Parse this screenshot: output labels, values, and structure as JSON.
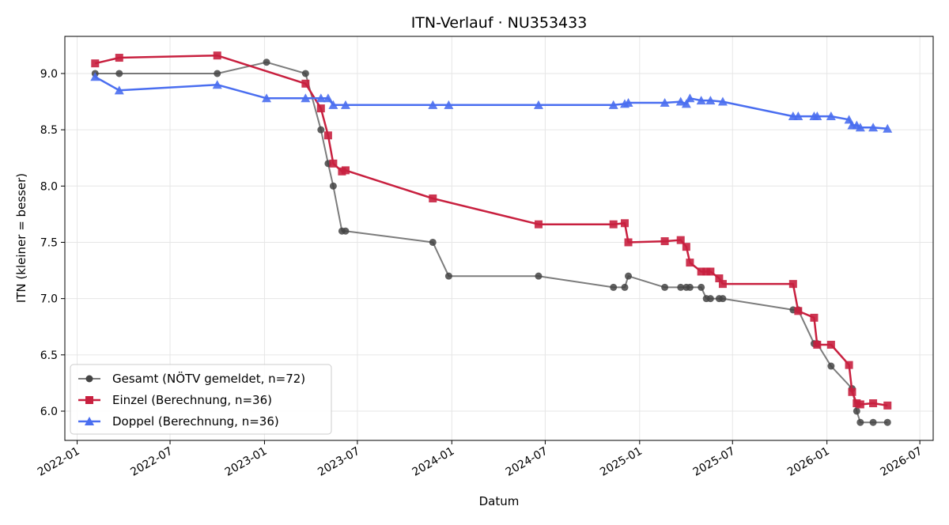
{
  "chart_data": {
    "type": "line",
    "title": "ITN-Verlauf · NU353433",
    "xlabel": "Datum",
    "ylabel": "ITN  (kleiner = besser)",
    "x_ticks": [
      "2022-01",
      "2022-07",
      "2023-01",
      "2023-07",
      "2024-01",
      "2024-07",
      "2025-01",
      "2025-07",
      "2026-01",
      "2026-07"
    ],
    "y_ticks": [
      "6.0",
      "6.5",
      "7.0",
      "7.5",
      "8.0",
      "8.5",
      "9.0"
    ],
    "xlim": [
      "2021-12-08",
      "2026-07-27"
    ],
    "ylim": [
      5.74,
      9.33
    ],
    "grid": true,
    "legend_position": "lower-left",
    "series": [
      {
        "name": "Gesamt (NÖTV gemeldet, n=72)",
        "color": "#444444",
        "marker": "circle",
        "points": [
          [
            "2022-02-05",
            9.0
          ],
          [
            "2022-03-24",
            9.0
          ],
          [
            "2022-10-01",
            9.0
          ],
          [
            "2023-01-05",
            9.1
          ],
          [
            "2023-03-22",
            9.0
          ],
          [
            "2023-04-21",
            8.5
          ],
          [
            "2023-05-05",
            8.2
          ],
          [
            "2023-05-15",
            8.0
          ],
          [
            "2023-06-01",
            7.6
          ],
          [
            "2023-06-08",
            7.6
          ],
          [
            "2023-11-25",
            7.5
          ],
          [
            "2023-12-26",
            7.2
          ],
          [
            "2024-06-18",
            7.2
          ],
          [
            "2024-11-11",
            7.1
          ],
          [
            "2024-12-03",
            7.1
          ],
          [
            "2024-12-10",
            7.2
          ],
          [
            "2025-02-19",
            7.1
          ],
          [
            "2025-03-22",
            7.1
          ],
          [
            "2025-04-02",
            7.1
          ],
          [
            "2025-04-09",
            7.1
          ],
          [
            "2025-05-01",
            7.1
          ],
          [
            "2025-05-11",
            7.0
          ],
          [
            "2025-05-19",
            7.0
          ],
          [
            "2025-06-05",
            7.0
          ],
          [
            "2025-06-12",
            7.0
          ],
          [
            "2025-10-27",
            6.9
          ],
          [
            "2025-11-06",
            6.9
          ],
          [
            "2025-12-07",
            6.6
          ],
          [
            "2025-12-13",
            6.6
          ],
          [
            "2026-01-09",
            6.4
          ],
          [
            "2026-02-19",
            6.2
          ],
          [
            "2026-02-28",
            6.0
          ],
          [
            "2026-03-07",
            5.9
          ],
          [
            "2026-04-01",
            5.9
          ],
          [
            "2026-04-29",
            5.9
          ]
        ]
      },
      {
        "name": "Einzel (Berechnung, n=36)",
        "color": "#c8203f",
        "marker": "square",
        "points": [
          [
            "2022-02-05",
            9.09
          ],
          [
            "2022-03-24",
            9.14
          ],
          [
            "2022-10-01",
            9.16
          ],
          [
            "2023-03-22",
            8.91
          ],
          [
            "2023-04-21",
            8.69
          ],
          [
            "2023-05-05",
            8.45
          ],
          [
            "2023-05-15",
            8.2
          ],
          [
            "2023-06-01",
            8.13
          ],
          [
            "2023-06-08",
            8.14
          ],
          [
            "2023-11-25",
            7.89
          ],
          [
            "2024-06-18",
            7.66
          ],
          [
            "2024-11-11",
            7.66
          ],
          [
            "2024-12-03",
            7.67
          ],
          [
            "2024-12-10",
            7.5
          ],
          [
            "2025-02-19",
            7.51
          ],
          [
            "2025-03-22",
            7.52
          ],
          [
            "2025-04-02",
            7.46
          ],
          [
            "2025-04-09",
            7.32
          ],
          [
            "2025-05-01",
            7.24
          ],
          [
            "2025-05-11",
            7.24
          ],
          [
            "2025-05-19",
            7.24
          ],
          [
            "2025-06-05",
            7.18
          ],
          [
            "2025-06-12",
            7.13
          ],
          [
            "2025-10-27",
            7.13
          ],
          [
            "2025-11-06",
            6.89
          ],
          [
            "2025-12-07",
            6.83
          ],
          [
            "2025-12-13",
            6.59
          ],
          [
            "2026-01-09",
            6.59
          ],
          [
            "2026-02-13",
            6.41
          ],
          [
            "2026-02-19",
            6.17
          ],
          [
            "2026-02-28",
            6.07
          ],
          [
            "2026-03-07",
            6.06
          ],
          [
            "2026-04-01",
            6.07
          ],
          [
            "2026-04-29",
            6.05
          ]
        ]
      },
      {
        "name": "Doppel (Berechnung, n=36)",
        "color": "#4a6ef0",
        "marker": "triangle",
        "points": [
          [
            "2022-02-05",
            8.97
          ],
          [
            "2022-03-24",
            8.85
          ],
          [
            "2022-10-01",
            8.9
          ],
          [
            "2023-01-05",
            8.78
          ],
          [
            "2023-03-22",
            8.78
          ],
          [
            "2023-04-21",
            8.78
          ],
          [
            "2023-05-05",
            8.78
          ],
          [
            "2023-05-15",
            8.72
          ],
          [
            "2023-06-08",
            8.72
          ],
          [
            "2023-11-25",
            8.72
          ],
          [
            "2023-12-26",
            8.72
          ],
          [
            "2024-06-18",
            8.72
          ],
          [
            "2024-11-11",
            8.72
          ],
          [
            "2024-12-03",
            8.73
          ],
          [
            "2024-12-10",
            8.74
          ],
          [
            "2025-02-19",
            8.74
          ],
          [
            "2025-03-22",
            8.75
          ],
          [
            "2025-04-02",
            8.73
          ],
          [
            "2025-04-09",
            8.78
          ],
          [
            "2025-05-01",
            8.76
          ],
          [
            "2025-05-19",
            8.76
          ],
          [
            "2025-06-12",
            8.75
          ],
          [
            "2025-10-27",
            8.62
          ],
          [
            "2025-11-06",
            8.62
          ],
          [
            "2025-12-07",
            8.62
          ],
          [
            "2025-12-13",
            8.62
          ],
          [
            "2026-01-09",
            8.62
          ],
          [
            "2026-02-13",
            8.59
          ],
          [
            "2026-02-19",
            8.54
          ],
          [
            "2026-02-28",
            8.54
          ],
          [
            "2026-03-07",
            8.52
          ],
          [
            "2026-04-01",
            8.52
          ],
          [
            "2026-04-29",
            8.51
          ]
        ]
      }
    ]
  }
}
